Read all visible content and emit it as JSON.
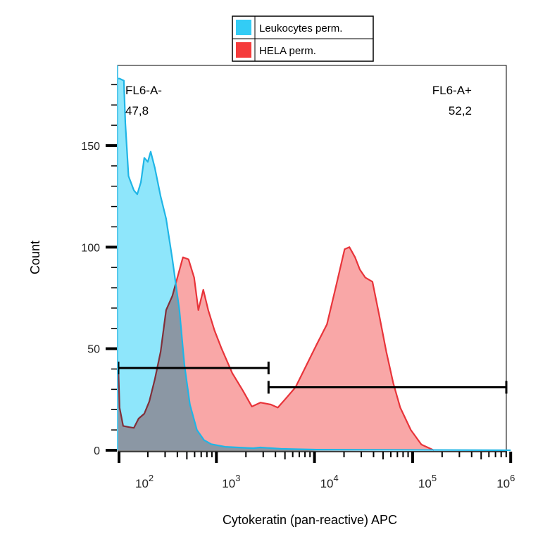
{
  "chart_data": {
    "type": "area",
    "title": "",
    "xlabel": "Cytokeratin (pan-reactive) APC",
    "ylabel": "Count",
    "xscale": "log",
    "xlim": [
      100,
      1000000
    ],
    "ylim": [
      0,
      189
    ],
    "xticks": [
      {
        "value": 100,
        "base": "10",
        "exp": "2"
      },
      {
        "value": 1000,
        "base": "10",
        "exp": "3"
      },
      {
        "value": 10000,
        "base": "10",
        "exp": "4"
      },
      {
        "value": 100000,
        "base": "10",
        "exp": "5"
      },
      {
        "value": 1000000,
        "base": "10",
        "exp": "6"
      }
    ],
    "yticks": [
      0,
      50,
      100,
      150
    ],
    "grid": false,
    "legend": {
      "placement": "top-center",
      "entries": [
        {
          "label": "Leukocytes perm.",
          "color": "#33ccf5"
        },
        {
          "label": "HELA perm.",
          "color": "#f53b3b"
        }
      ]
    },
    "series": [
      {
        "name": "HELA perm.",
        "line_color": "#e8343a",
        "fill_color": "#f9a7a7",
        "x": [
          100,
          103,
          112,
          128,
          144,
          161,
          184,
          207,
          236,
          270,
          307,
          356,
          400,
          456,
          520,
          593,
          655,
          735,
          825,
          956,
          1130,
          1450,
          1860,
          2300,
          2810,
          3590,
          4230,
          5000,
          6400,
          8200,
          10500,
          13400,
          16600,
          20300,
          22700,
          25900,
          29000,
          33000,
          39000,
          45900,
          54000,
          63600,
          74900,
          96000,
          123000,
          165000
        ],
        "y": [
          41.5,
          21,
          12,
          11.4,
          11,
          15.6,
          18,
          24,
          35,
          48.5,
          69,
          76,
          85,
          95,
          94,
          85,
          69,
          79,
          69,
          59,
          50,
          38,
          29.4,
          21.5,
          23.5,
          22.5,
          21,
          25,
          31,
          41.5,
          52,
          62,
          81,
          99,
          100,
          95,
          89,
          85,
          83,
          66,
          48.5,
          33,
          21,
          10,
          2.8,
          0
        ]
      },
      {
        "name": "Leukocytes perm.",
        "line_color": "#1fb5e6",
        "fill_color": "#8ee6fb",
        "x": [
          100,
          103,
          114,
          118,
          127,
          144,
          156,
          170,
          184,
          200,
          214,
          236,
          270,
          307,
          356,
          420,
          472,
          537,
          633,
          749,
          885,
          1230,
          2370,
          2800,
          4600,
          10500,
          1000000
        ],
        "y": [
          183,
          183,
          182,
          161,
          135,
          128,
          126,
          132,
          144,
          142,
          147,
          139,
          125,
          114,
          94,
          69,
          42,
          22.5,
          10,
          5,
          3,
          1.7,
          1,
          1.4,
          0.7,
          0.3,
          0
        ]
      }
    ],
    "gates": [
      {
        "label": "FL6-A-",
        "value": "47,8",
        "x_range": [
          100,
          3400
        ],
        "y": 40.5
      },
      {
        "label": "FL6-A+",
        "value": "52,2",
        "x_range": [
          3400,
          1000000
        ],
        "y": 31
      }
    ]
  }
}
